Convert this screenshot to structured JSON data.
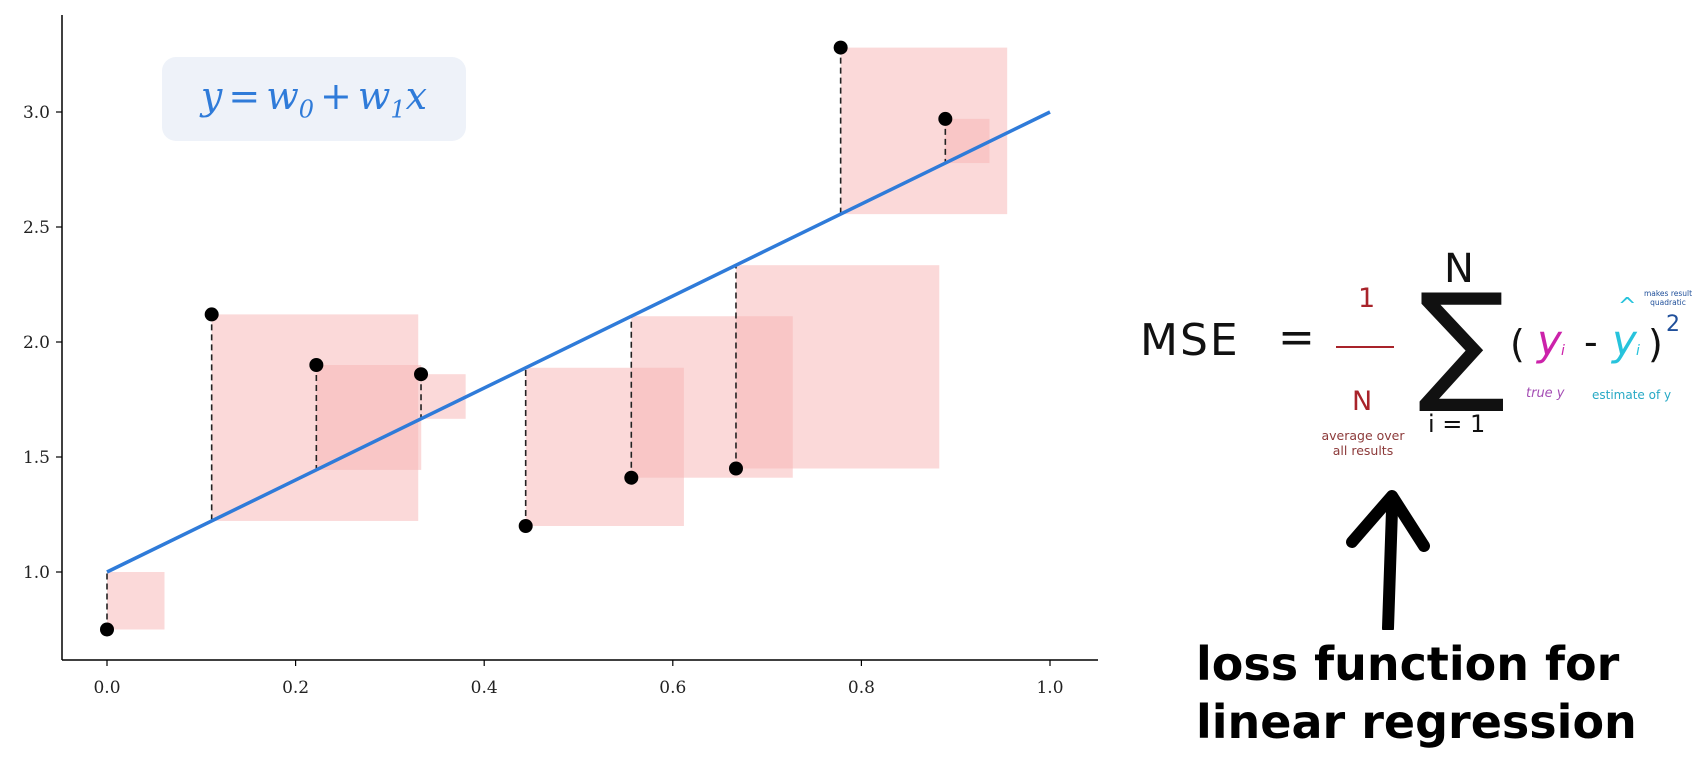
{
  "chart_data": {
    "type": "scatter",
    "title": "",
    "xlabel": "",
    "ylabel": "",
    "xlim": [
      -0.05,
      1.05
    ],
    "ylim": [
      0.6,
      3.4
    ],
    "xticks": [
      0.0,
      0.2,
      0.4,
      0.6,
      0.8,
      1.0
    ],
    "xtick_labels": [
      "0.0",
      "0.2",
      "0.4",
      "0.6",
      "0.8",
      "1.0"
    ],
    "yticks": [
      1.0,
      1.5,
      2.0,
      2.5,
      3.0
    ],
    "ytick_labels": [
      "1.0",
      "1.5",
      "2.0",
      "2.5",
      "3.0"
    ],
    "grid": false,
    "points": {
      "x": [
        0.0,
        0.111,
        0.222,
        0.333,
        0.444,
        0.556,
        0.667,
        0.778,
        0.889
      ],
      "y": [
        0.75,
        2.12,
        1.9,
        1.86,
        1.2,
        1.41,
        1.45,
        3.28,
        2.97
      ]
    },
    "fit_line": {
      "intercept": 1.0,
      "slope": 2.0,
      "x_range": [
        0.0,
        1.0
      ],
      "color": "#2f7bd9"
    },
    "residual_squares_color": "#f7b3b3",
    "point_color": "#000000",
    "equation": {
      "lhs": "y",
      "eq": "=",
      "w0": "w",
      "w0_sub": "0",
      "plus": "+",
      "w1": "w",
      "w1_sub": "1",
      "x": "x"
    }
  },
  "formula": {
    "mse": "MSE",
    "equals": "=",
    "numerator": "1",
    "denominator": "N",
    "avg_note_line1": "average over",
    "avg_note_line2": "all results",
    "sum_top": "N",
    "sigma": "∑",
    "sum_bottom": "i = 1",
    "open_paren": "(",
    "y_true": "y",
    "y_true_sub": "i",
    "minus": "-",
    "y_hat": "y",
    "hat": "^",
    "y_hat_sub": "i",
    "close_paren": ")",
    "exponent": "2",
    "quad_note_line1": "makes result",
    "quad_note_line2": "quadratic",
    "true_note": "true y",
    "estimate_note": "estimate of y"
  },
  "caption": {
    "line1": "loss function for",
    "line2": "linear regression"
  }
}
